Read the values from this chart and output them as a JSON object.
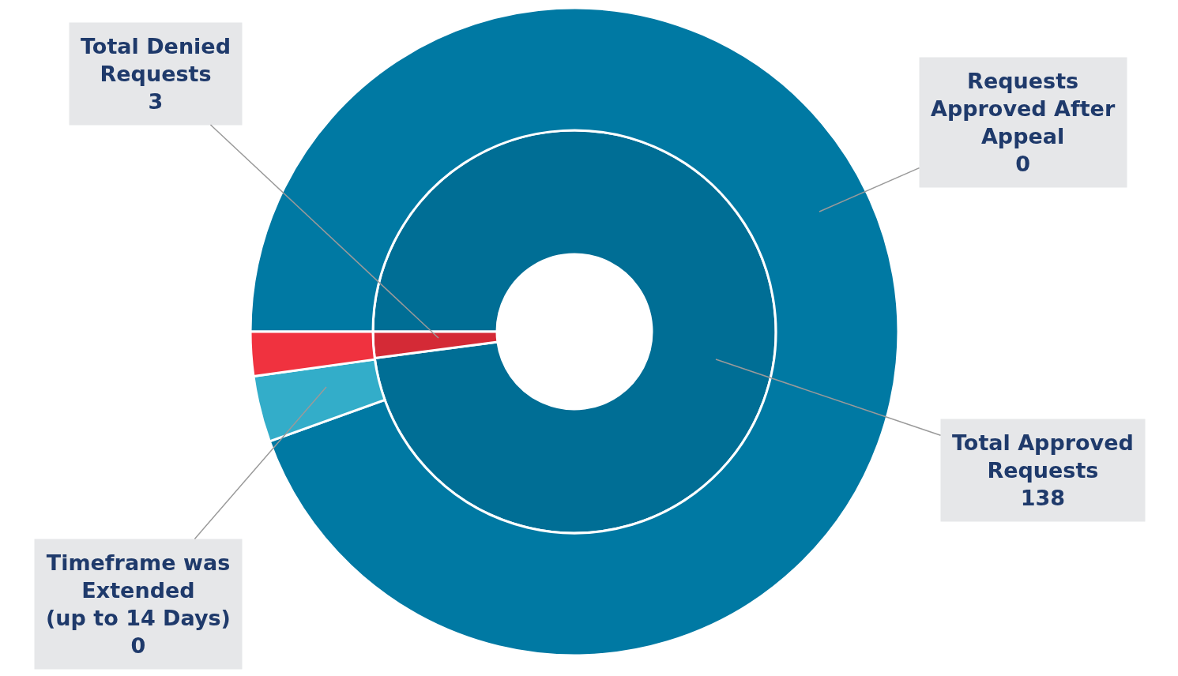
{
  "chart_data": {
    "type": "donut",
    "categories": [
      null,
      null,
      null
    ],
    "series": [
      {
        "values": [
          97.9,
          null,
          2.1
        ],
        "colors": [
          "#006e95",
          "#33adc9",
          "#d42a36"
        ]
      },
      {
        "values": [
          94.5,
          3.3,
          2.2
        ],
        "colors": [
          "#0079a3",
          "#33adc9",
          "#f0323f"
        ]
      }
    ],
    "annotations": [
      "Total Approved\nRequests\n138",
      "Total Denied\nRequests\n3",
      "Timeframe was\nExtended\n(up to 14 Days)\n0",
      "Requests\nApproved After\nAppeal\n0"
    ],
    "legend": false
  }
}
